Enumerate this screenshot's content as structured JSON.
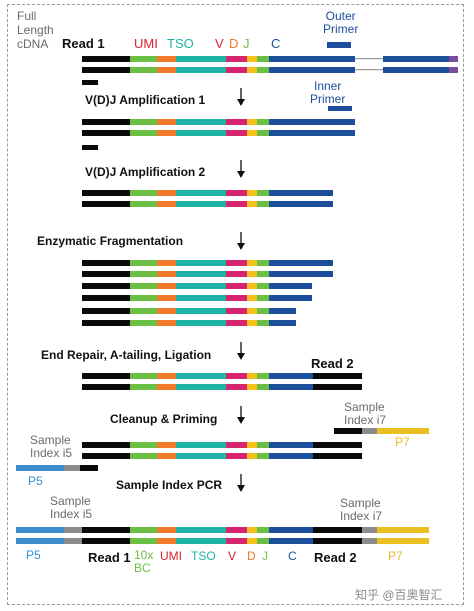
{
  "colors": {
    "black": "#0a0a0a",
    "umi_green": "#6cbf45",
    "tso_orange": "#f07a2a",
    "teal": "#1fb3a8",
    "v_magenta": "#d6246e",
    "d_yellow": "#f2c11d",
    "j_green": "#6cbf45",
    "c_blue": "#1c4e9c",
    "p5_blue": "#3b8fd0",
    "p7_yellow": "#e9bf22",
    "index_gray": "#8c8c8c",
    "label_red": "#d8232a",
    "label_teal": "#1fb3a8",
    "label_orange": "#f07a2a",
    "label_green": "#6cbf45",
    "label_blue": "#1c4e9c"
  },
  "top_labels": {
    "full_length_cdna": [
      "Full",
      "Length",
      "cDNA"
    ],
    "read1": "Read 1",
    "umi": "UMI",
    "tso": "TSO",
    "v": "V",
    "d": "D",
    "j": "J",
    "c": "C",
    "outer_primer": [
      "Outer",
      "Primer"
    ],
    "inner_primer": [
      "Inner",
      "Primer"
    ]
  },
  "steps": {
    "vdj1": "V(D)J Amplification 1",
    "vdj2": "V(D)J Amplification 2",
    "frag": "Enzymatic Fragmentation",
    "repair": "End Repair, A-tailing, Ligation",
    "read2": "Read 2",
    "cleanup": "Cleanup & Priming",
    "sample_index_i7": [
      "Sample",
      "Index i7"
    ],
    "p7": "P7",
    "sample_index_i5": [
      "Sample",
      "Index i5"
    ],
    "p5": "P5",
    "pcr": "Sample Index PCR"
  },
  "bottom_labels": {
    "sample_index_i5": [
      "Sample",
      "Index i5"
    ],
    "sample_index_i7": [
      "Sample",
      "Index i7"
    ],
    "p5": "P5",
    "read1": "Read 1",
    "bc": [
      "10x",
      "BC"
    ],
    "umi": "UMI",
    "tso": "TSO",
    "v": "V",
    "d": "D",
    "j": "J",
    "c": "C",
    "read2": "Read 2",
    "p7": "P7"
  },
  "watermark": "知乎 @百奥智汇"
}
